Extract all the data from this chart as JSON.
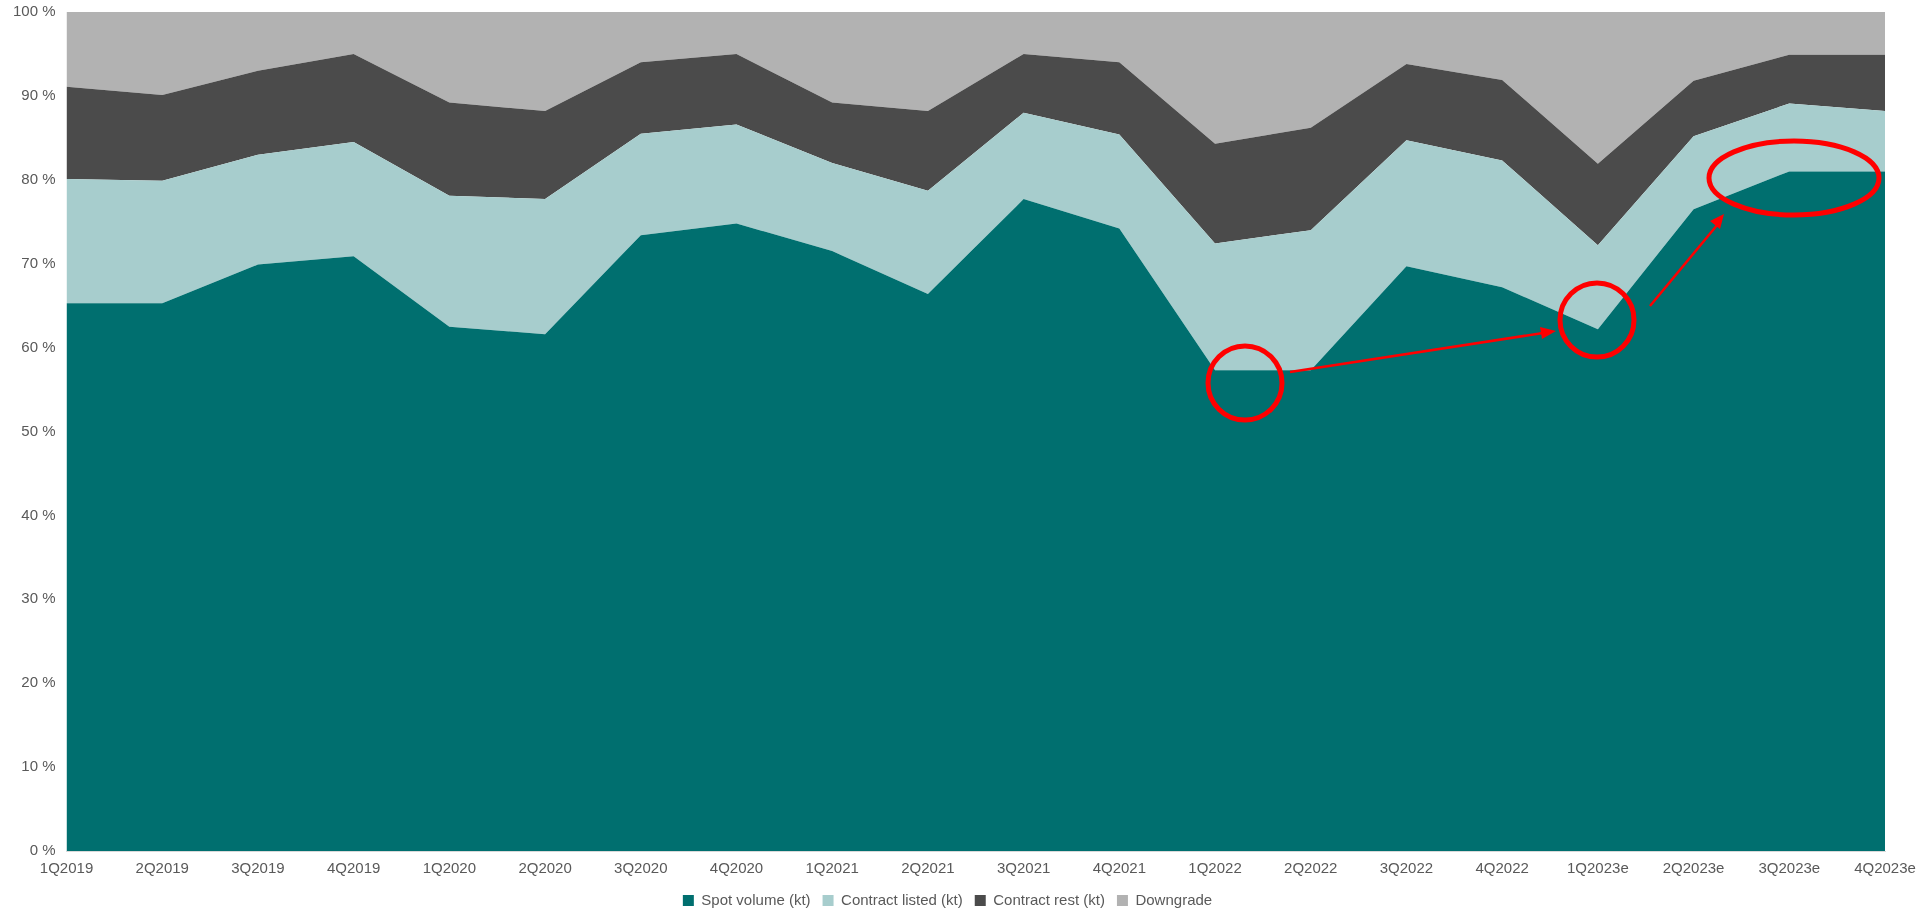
{
  "chart_data": {
    "type": "area",
    "stacked": true,
    "legend": "bottom",
    "categories": [
      "1Q2019",
      "2Q2019",
      "3Q2019",
      "4Q2019",
      "1Q2020",
      "2Q2020",
      "3Q2020",
      "4Q2020",
      "1Q2021",
      "2Q2021",
      "3Q2021",
      "4Q2021",
      "1Q2022",
      "2Q2022",
      "3Q2022",
      "4Q2022",
      "1Q2023e",
      "2Q2023e",
      "3Q2023e",
      "4Q2023e"
    ],
    "series": [
      {
        "name": "Spot volume (kt)",
        "color": "#006f6f",
        "values": [
          65.3,
          65.3,
          69.9,
          70.9,
          62.5,
          61.6,
          73.4,
          74.8,
          71.5,
          66.4,
          77.7,
          74.2,
          57.3,
          57.3,
          69.7,
          67.2,
          62.2,
          76.5,
          81.0,
          81.0
        ]
      },
      {
        "name": "Contract listed (kt)",
        "color": "#a7cdcd",
        "values": [
          14.8,
          14.6,
          13.1,
          13.6,
          15.6,
          16.1,
          12.1,
          11.8,
          10.5,
          12.3,
          10.3,
          11.2,
          15.1,
          16.7,
          15.0,
          15.1,
          10.0,
          8.7,
          8.1,
          7.2
        ]
      },
      {
        "name": "Contract rest (kt)",
        "color": "#4b4b4b",
        "values": [
          11.0,
          10.2,
          10.0,
          10.5,
          11.1,
          10.5,
          8.5,
          8.4,
          7.2,
          9.5,
          7.0,
          8.6,
          11.9,
          12.2,
          9.1,
          9.6,
          9.7,
          6.6,
          5.8,
          6.7
        ]
      },
      {
        "name": "Downgrade",
        "color": "#b2b2b2",
        "values": [
          8.9,
          9.9,
          7.0,
          5.0,
          10.8,
          11.8,
          6.0,
          5.0,
          10.8,
          11.8,
          5.0,
          6.0,
          15.7,
          13.8,
          6.2,
          8.1,
          18.1,
          8.2,
          5.1,
          5.1
        ]
      }
    ],
    "ylim": [
      0,
      100
    ],
    "yticks": [
      {
        "value": 0,
        "label": "0 %"
      },
      {
        "value": 10,
        "label": "10 %"
      },
      {
        "value": 20,
        "label": "20 %"
      },
      {
        "value": 30,
        "label": "30 %"
      },
      {
        "value": 40,
        "label": "40 %"
      },
      {
        "value": 50,
        "label": "50 %"
      },
      {
        "value": 60,
        "label": "60 %"
      },
      {
        "value": 70,
        "label": "70 %"
      },
      {
        "value": 80,
        "label": "80 %"
      },
      {
        "value": 90,
        "label": "90 %"
      },
      {
        "value": 100,
        "label": "100 %"
      }
    ]
  }
}
